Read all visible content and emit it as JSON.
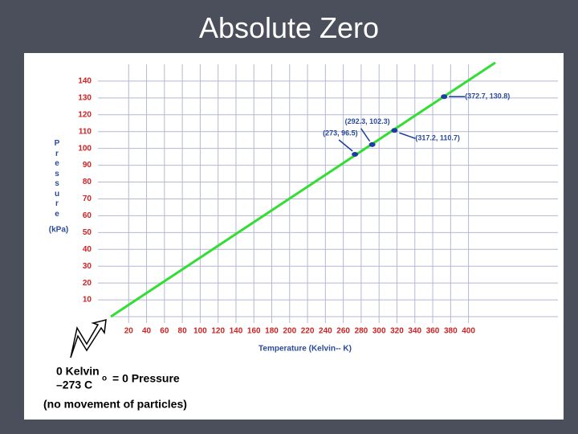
{
  "chart_data": {
    "type": "line",
    "title": "Absolute Zero",
    "x_label": "Temperature (Kelvin-- K)",
    "y_label": "Pressure",
    "y_unit": "(kPa)",
    "xlim": [
      0,
      500
    ],
    "ylim": [
      0,
      150
    ],
    "xticks": [
      20,
      40,
      60,
      80,
      100,
      120,
      140,
      160,
      180,
      200,
      220,
      240,
      260,
      280,
      300,
      320,
      340,
      360,
      380,
      400
    ],
    "yticks": [
      10,
      20,
      30,
      40,
      50,
      60,
      70,
      80,
      90,
      100,
      110,
      120,
      130,
      140
    ],
    "grid": true,
    "line": {
      "x": [
        0,
        430
      ],
      "values": [
        0,
        151
      ],
      "color": "#33dd33"
    },
    "points": {
      "x": [
        273,
        292.3,
        317.2,
        372.7
      ],
      "values": [
        96.5,
        102.3,
        110.7,
        130.8
      ],
      "value_labels": [
        "(273, 96.5)",
        "(292.3, 102.3)",
        "(317.2, 110.7)",
        "(372.7, 130.8)"
      ],
      "color": "#1a3fa0"
    },
    "annotations": [
      "0 Kelvin",
      "–273 C",
      "o",
      "= 0 Pressure",
      "(no movement of particles)"
    ]
  }
}
